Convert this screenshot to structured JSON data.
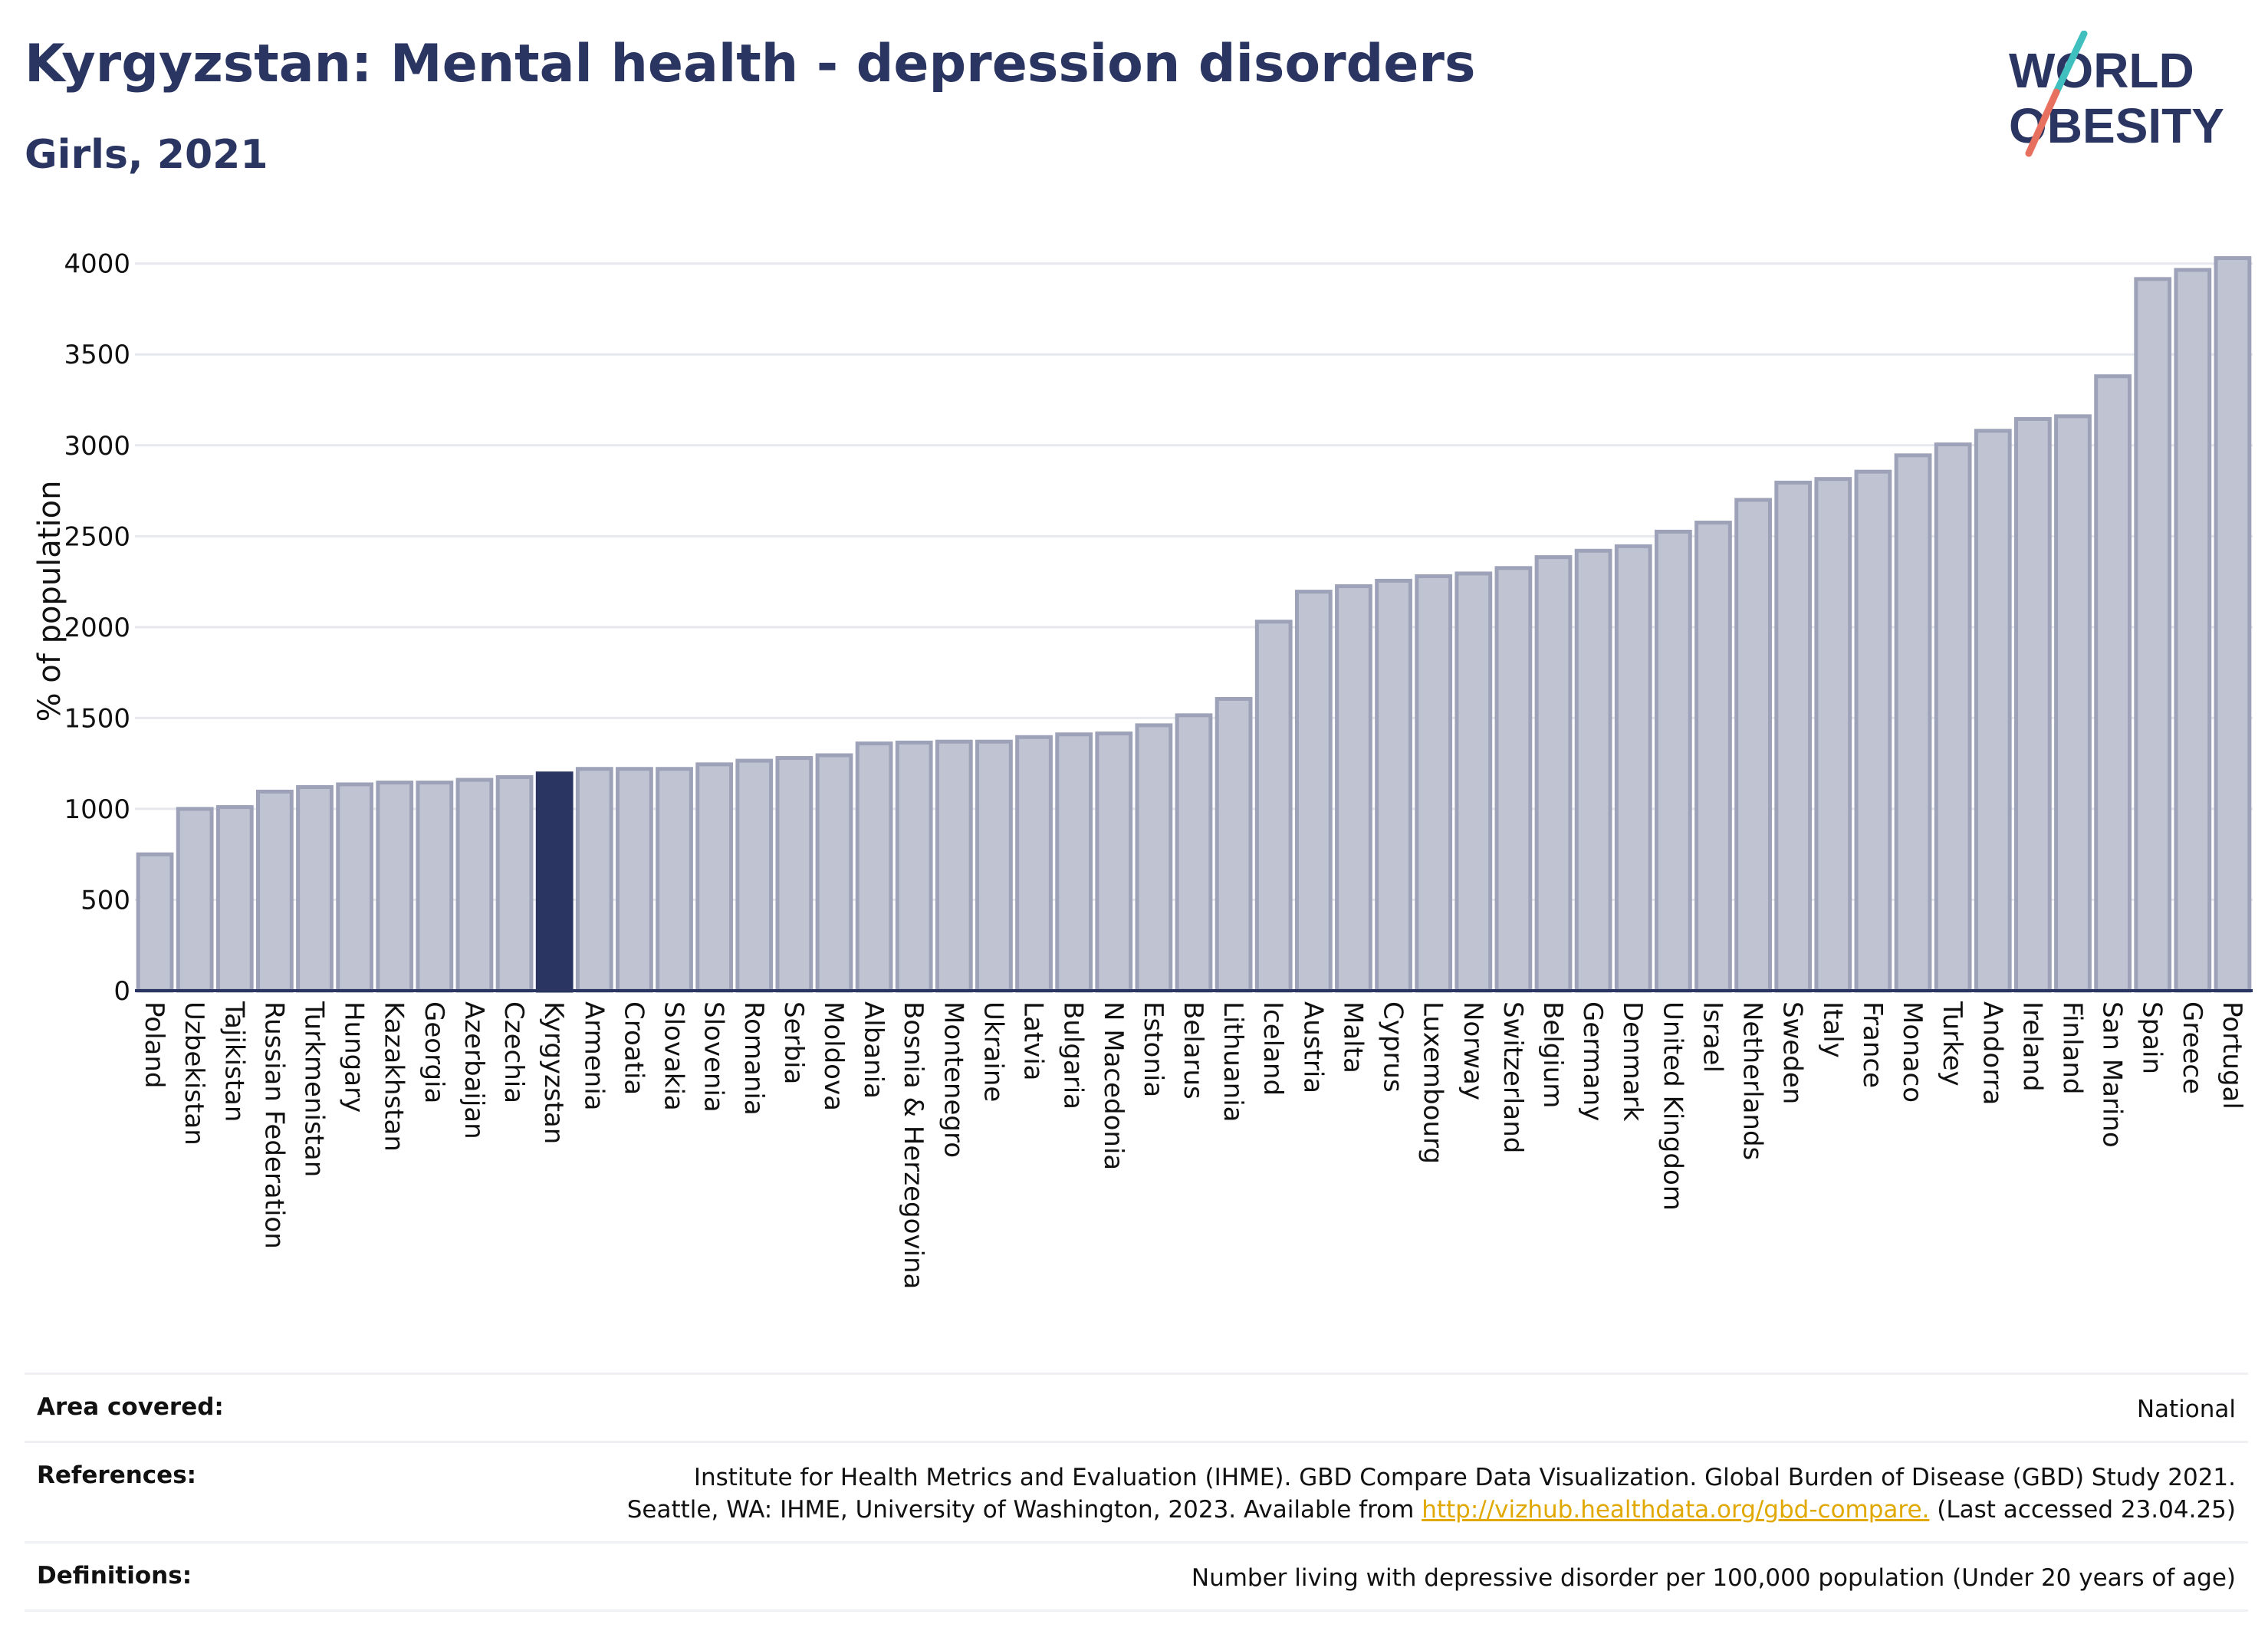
{
  "header": {
    "title": "Kyrgyzstan: Mental health - depression disorders",
    "subtitle": "Girls, 2021",
    "logo_line1": "WORLD",
    "logo_line2": "OBESITY"
  },
  "colors": {
    "bar": "#bfc3d2",
    "bar_stroke": "#9da2b8",
    "highlight": "#2a3561",
    "accent_teal": "#3fc0bf",
    "accent_coral": "#e8705e",
    "link": "#e0a800"
  },
  "chart_data": {
    "type": "bar",
    "ylabel": "% of population",
    "ylim": [
      0,
      4100
    ],
    "yticks": [
      0,
      500,
      1000,
      1500,
      2000,
      2500,
      3000,
      3500,
      4000
    ],
    "grid": true,
    "highlight": "Kyrgyzstan",
    "categories": [
      "Poland",
      "Uzbekistan",
      "Tajikistan",
      "Russian Federation",
      "Turkmenistan",
      "Hungary",
      "Kazakhstan",
      "Georgia",
      "Azerbaijan",
      "Czechia",
      "Kyrgyzstan",
      "Armenia",
      "Croatia",
      "Slovakia",
      "Slovenia",
      "Romania",
      "Serbia",
      "Moldova",
      "Albania",
      "Bosnia & Herzegovina",
      "Montenegro",
      "Ukraine",
      "Latvia",
      "Bulgaria",
      "N Macedonia",
      "Estonia",
      "Belarus",
      "Lithuania",
      "Iceland",
      "Austria",
      "Malta",
      "Cyprus",
      "Luxembourg",
      "Norway",
      "Switzerland",
      "Belgium",
      "Germany",
      "Denmark",
      "United Kingdom",
      "Israel",
      "Netherlands",
      "Sweden",
      "Italy",
      "France",
      "Monaco",
      "Turkey",
      "Andorra",
      "Ireland",
      "Finland",
      "San Marino",
      "Spain",
      "Greece",
      "Portugal"
    ],
    "values": [
      750,
      1000,
      1010,
      1095,
      1120,
      1135,
      1145,
      1145,
      1160,
      1175,
      1195,
      1220,
      1220,
      1220,
      1245,
      1265,
      1280,
      1295,
      1360,
      1365,
      1370,
      1370,
      1395,
      1410,
      1415,
      1460,
      1515,
      1605,
      2030,
      2195,
      2225,
      2255,
      2280,
      2295,
      2325,
      2385,
      2420,
      2445,
      2525,
      2575,
      2700,
      2795,
      2815,
      2855,
      2945,
      3005,
      3080,
      3145,
      3160,
      3380,
      3915,
      3965,
      4030
    ]
  },
  "footer": {
    "area_label": "Area covered:",
    "area_value": "National",
    "references_label": "References:",
    "references_line1": "Institute for Health Metrics and Evaluation (IHME). GBD Compare Data Visualization. Global Burden of Disease (GBD) Study 2021.",
    "references_line2_pre": "Seattle, WA: IHME, University of Washington, 2023. Available from ",
    "references_link": "http://vizhub.healthdata.org/gbd-compare.",
    "references_line2_post": " (Last accessed 23.04.25)",
    "definitions_label": "Definitions:",
    "definitions_value": "Number living with depressive disorder per 100,000 population (Under 20 years of age)"
  }
}
